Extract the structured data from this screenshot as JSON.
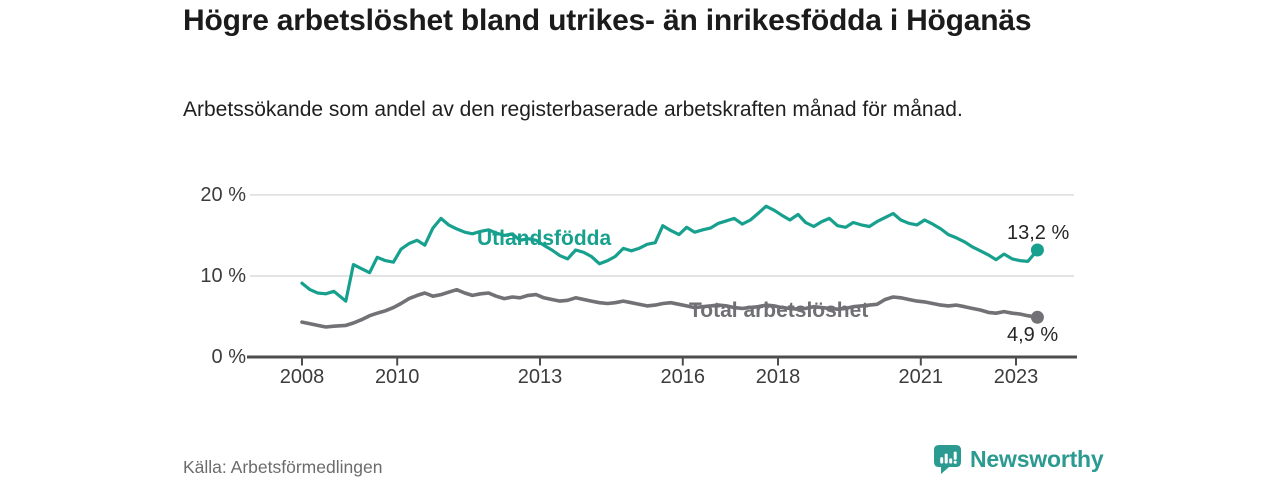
{
  "header": {
    "title": "Högre arbetslöshet bland utrikes- än inrikesfödda i Höganäs",
    "subtitle": "Arbetssökande som andel av den registerbaserade arbetskraften månad för månad."
  },
  "footer": {
    "source": "Källa: Arbetsförmedlingen",
    "brand": "Newsworthy"
  },
  "colors": {
    "accent_teal": "#17a08e",
    "line_gray": "#727276",
    "series_label_gray": "#6f6f74",
    "grid": "#dcdcdc",
    "axis": "#4d4d4d",
    "text_dark": "#1b1b1b",
    "value_label": "#262626",
    "source_gray": "#6c6c6c",
    "logo_teal": "#2b9a90"
  },
  "chart_data": {
    "type": "line",
    "title": "Högre arbetslöshet bland utrikes- än inrikesfödda i Höganäs",
    "subtitle": "Arbetssökande som andel av den registerbaserade arbetskraften månad för månad.",
    "source": "Källa: Arbetsförmedlingen",
    "xlabel": "",
    "ylabel": "",
    "grid": "horizontal",
    "legend_position": "inline-labels",
    "x_axis": {
      "unit": "year",
      "range": [
        2007.0,
        2024.2
      ],
      "ticks": [
        2008,
        2010,
        2013,
        2016,
        2018,
        2021,
        2023
      ],
      "labels": [
        "2008",
        "2010",
        "2013",
        "2016",
        "2018",
        "2021",
        "2023"
      ]
    },
    "y_axis": {
      "unit": "%",
      "range": [
        0,
        20
      ],
      "ticks": [
        0,
        10,
        20
      ],
      "labels": [
        "0 %",
        "10 %",
        "20 %"
      ]
    },
    "series": [
      {
        "name": "Utlandsfödda",
        "color": "#17a08e",
        "end_value": 13.2,
        "end_label": "13,2 %",
        "points": [
          [
            2008.0,
            9.1
          ],
          [
            2008.17,
            8.3
          ],
          [
            2008.33,
            7.9
          ],
          [
            2008.5,
            7.8
          ],
          [
            2008.67,
            8.1
          ],
          [
            2008.92,
            6.9
          ],
          [
            2009.08,
            11.4
          ],
          [
            2009.25,
            10.9
          ],
          [
            2009.42,
            10.4
          ],
          [
            2009.58,
            12.3
          ],
          [
            2009.75,
            11.9
          ],
          [
            2009.92,
            11.7
          ],
          [
            2010.08,
            13.3
          ],
          [
            2010.25,
            14.0
          ],
          [
            2010.42,
            14.4
          ],
          [
            2010.58,
            13.8
          ],
          [
            2010.75,
            15.9
          ],
          [
            2010.92,
            17.1
          ],
          [
            2011.08,
            16.3
          ],
          [
            2011.25,
            15.8
          ],
          [
            2011.42,
            15.4
          ],
          [
            2011.58,
            15.2
          ],
          [
            2011.75,
            15.5
          ],
          [
            2011.92,
            15.7
          ],
          [
            2012.08,
            15.3
          ],
          [
            2012.25,
            15.0
          ],
          [
            2012.42,
            15.2
          ],
          [
            2012.58,
            14.4
          ],
          [
            2012.75,
            14.6
          ],
          [
            2012.92,
            14.4
          ],
          [
            2013.08,
            13.8
          ],
          [
            2013.25,
            13.2
          ],
          [
            2013.42,
            12.5
          ],
          [
            2013.58,
            12.1
          ],
          [
            2013.75,
            13.2
          ],
          [
            2013.92,
            12.9
          ],
          [
            2014.08,
            12.4
          ],
          [
            2014.25,
            11.5
          ],
          [
            2014.42,
            11.9
          ],
          [
            2014.58,
            12.4
          ],
          [
            2014.75,
            13.4
          ],
          [
            2014.92,
            13.1
          ],
          [
            2015.08,
            13.4
          ],
          [
            2015.25,
            13.9
          ],
          [
            2015.42,
            14.1
          ],
          [
            2015.58,
            16.2
          ],
          [
            2015.75,
            15.6
          ],
          [
            2015.92,
            15.1
          ],
          [
            2016.08,
            16.0
          ],
          [
            2016.25,
            15.4
          ],
          [
            2016.42,
            15.7
          ],
          [
            2016.58,
            15.9
          ],
          [
            2016.75,
            16.5
          ],
          [
            2016.92,
            16.8
          ],
          [
            2017.08,
            17.1
          ],
          [
            2017.25,
            16.4
          ],
          [
            2017.42,
            16.9
          ],
          [
            2017.58,
            17.7
          ],
          [
            2017.75,
            18.6
          ],
          [
            2017.92,
            18.1
          ],
          [
            2018.08,
            17.5
          ],
          [
            2018.25,
            16.9
          ],
          [
            2018.42,
            17.6
          ],
          [
            2018.58,
            16.6
          ],
          [
            2018.75,
            16.1
          ],
          [
            2018.92,
            16.7
          ],
          [
            2019.08,
            17.1
          ],
          [
            2019.25,
            16.2
          ],
          [
            2019.42,
            16.0
          ],
          [
            2019.58,
            16.6
          ],
          [
            2019.75,
            16.3
          ],
          [
            2019.92,
            16.1
          ],
          [
            2020.08,
            16.7
          ],
          [
            2020.25,
            17.2
          ],
          [
            2020.42,
            17.7
          ],
          [
            2020.58,
            16.9
          ],
          [
            2020.75,
            16.5
          ],
          [
            2020.92,
            16.3
          ],
          [
            2021.08,
            16.9
          ],
          [
            2021.25,
            16.4
          ],
          [
            2021.42,
            15.8
          ],
          [
            2021.58,
            15.1
          ],
          [
            2021.75,
            14.7
          ],
          [
            2021.92,
            14.2
          ],
          [
            2022.08,
            13.6
          ],
          [
            2022.25,
            13.1
          ],
          [
            2022.42,
            12.6
          ],
          [
            2022.58,
            12.0
          ],
          [
            2022.75,
            12.7
          ],
          [
            2022.92,
            12.1
          ],
          [
            2023.08,
            11.9
          ],
          [
            2023.25,
            11.8
          ],
          [
            2023.45,
            13.2
          ]
        ]
      },
      {
        "name": "Total arbetslöshet",
        "color": "#727276",
        "end_value": 4.9,
        "end_label": "4,9 %",
        "points": [
          [
            2008.0,
            4.3
          ],
          [
            2008.17,
            4.1
          ],
          [
            2008.33,
            3.9
          ],
          [
            2008.5,
            3.7
          ],
          [
            2008.67,
            3.8
          ],
          [
            2008.92,
            3.9
          ],
          [
            2009.08,
            4.2
          ],
          [
            2009.25,
            4.6
          ],
          [
            2009.42,
            5.1
          ],
          [
            2009.58,
            5.4
          ],
          [
            2009.75,
            5.7
          ],
          [
            2009.92,
            6.1
          ],
          [
            2010.08,
            6.6
          ],
          [
            2010.25,
            7.2
          ],
          [
            2010.42,
            7.6
          ],
          [
            2010.58,
            7.9
          ],
          [
            2010.75,
            7.5
          ],
          [
            2010.92,
            7.7
          ],
          [
            2011.08,
            8.0
          ],
          [
            2011.25,
            8.3
          ],
          [
            2011.42,
            7.9
          ],
          [
            2011.58,
            7.6
          ],
          [
            2011.75,
            7.8
          ],
          [
            2011.92,
            7.9
          ],
          [
            2012.08,
            7.5
          ],
          [
            2012.25,
            7.2
          ],
          [
            2012.42,
            7.4
          ],
          [
            2012.58,
            7.3
          ],
          [
            2012.75,
            7.6
          ],
          [
            2012.92,
            7.7
          ],
          [
            2013.08,
            7.3
          ],
          [
            2013.25,
            7.1
          ],
          [
            2013.42,
            6.9
          ],
          [
            2013.58,
            7.0
          ],
          [
            2013.75,
            7.3
          ],
          [
            2013.92,
            7.1
          ],
          [
            2014.08,
            6.9
          ],
          [
            2014.25,
            6.7
          ],
          [
            2014.42,
            6.6
          ],
          [
            2014.58,
            6.7
          ],
          [
            2014.75,
            6.9
          ],
          [
            2014.92,
            6.7
          ],
          [
            2015.08,
            6.5
          ],
          [
            2015.25,
            6.3
          ],
          [
            2015.42,
            6.4
          ],
          [
            2015.58,
            6.6
          ],
          [
            2015.75,
            6.7
          ],
          [
            2015.92,
            6.5
          ],
          [
            2016.08,
            6.3
          ],
          [
            2016.25,
            6.1
          ],
          [
            2016.42,
            6.2
          ],
          [
            2016.58,
            6.3
          ],
          [
            2016.75,
            6.4
          ],
          [
            2016.92,
            6.3
          ],
          [
            2017.08,
            6.1
          ],
          [
            2017.25,
            6.0
          ],
          [
            2017.42,
            6.1
          ],
          [
            2017.58,
            6.2
          ],
          [
            2017.75,
            6.4
          ],
          [
            2017.92,
            6.3
          ],
          [
            2018.08,
            6.1
          ],
          [
            2018.25,
            6.0
          ],
          [
            2018.42,
            5.9
          ],
          [
            2018.58,
            6.0
          ],
          [
            2018.75,
            6.2
          ],
          [
            2018.92,
            6.1
          ],
          [
            2019.08,
            6.0
          ],
          [
            2019.25,
            5.9
          ],
          [
            2019.42,
            6.0
          ],
          [
            2019.58,
            6.2
          ],
          [
            2019.75,
            6.3
          ],
          [
            2019.92,
            6.4
          ],
          [
            2020.08,
            6.5
          ],
          [
            2020.25,
            7.1
          ],
          [
            2020.42,
            7.4
          ],
          [
            2020.58,
            7.3
          ],
          [
            2020.75,
            7.1
          ],
          [
            2020.92,
            6.9
          ],
          [
            2021.08,
            6.8
          ],
          [
            2021.25,
            6.6
          ],
          [
            2021.42,
            6.4
          ],
          [
            2021.58,
            6.3
          ],
          [
            2021.75,
            6.4
          ],
          [
            2021.92,
            6.2
          ],
          [
            2022.08,
            6.0
          ],
          [
            2022.25,
            5.8
          ],
          [
            2022.42,
            5.5
          ],
          [
            2022.58,
            5.4
          ],
          [
            2022.75,
            5.6
          ],
          [
            2022.92,
            5.4
          ],
          [
            2023.08,
            5.3
          ],
          [
            2023.25,
            5.1
          ],
          [
            2023.45,
            4.9
          ]
        ]
      }
    ]
  }
}
